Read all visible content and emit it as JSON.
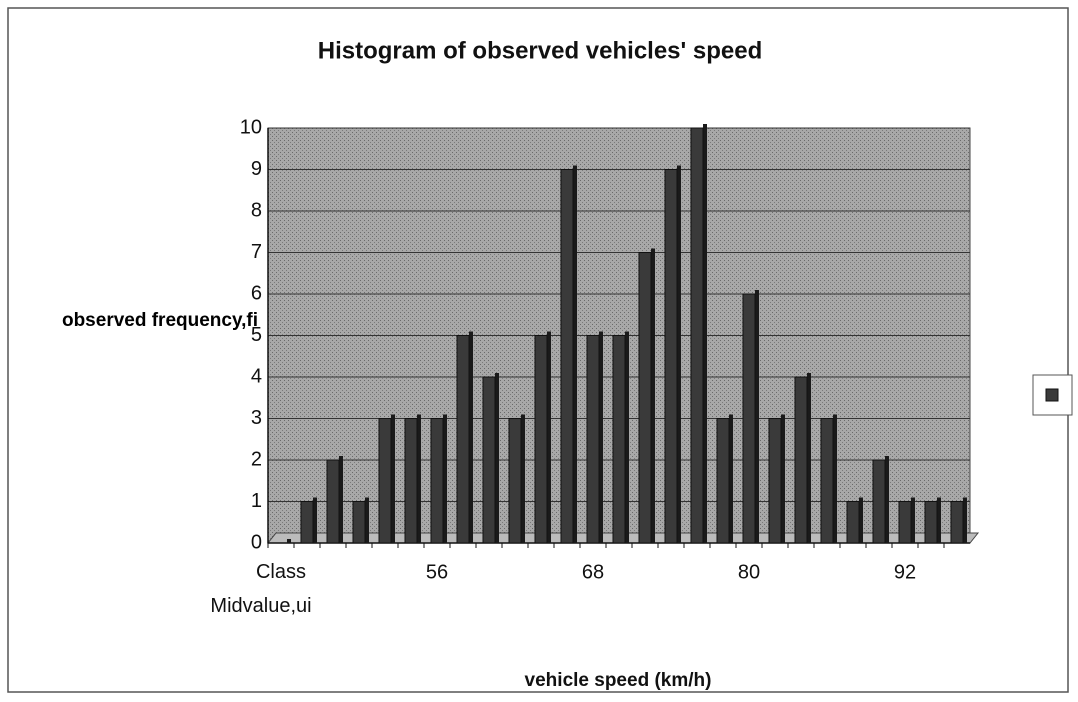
{
  "chart_data": {
    "type": "bar",
    "title": "Histogram of observed vehicles' speed",
    "x_label": "vehicle speed (km/h)",
    "y_label": "observed frequency,fi",
    "categories": [
      "Class Midvalue,ui",
      null,
      null,
      null,
      null,
      null,
      56,
      null,
      null,
      null,
      null,
      null,
      68,
      null,
      null,
      null,
      null,
      null,
      80,
      null,
      null,
      null,
      null,
      null,
      92,
      null,
      null
    ],
    "values": [
      0,
      1,
      2,
      1,
      3,
      3,
      3,
      5,
      4,
      3,
      5,
      9,
      5,
      5,
      7,
      9,
      10,
      3,
      6,
      3,
      4,
      3,
      1,
      2,
      1,
      1,
      1
    ],
    "color": "#3a3a3a",
    "ylim": [
      0,
      10
    ],
    "yticks": [
      0,
      1,
      2,
      3,
      4,
      5,
      6,
      7,
      8,
      9,
      10
    ],
    "grid": true
  }
}
